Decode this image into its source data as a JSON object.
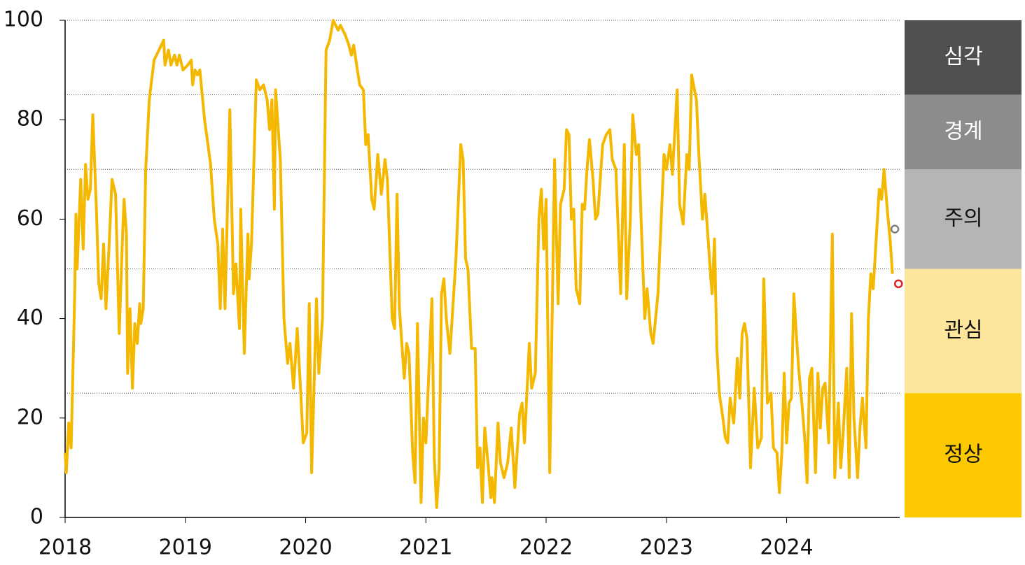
{
  "chart_data": {
    "type": "line",
    "x": [
      2018.0,
      2018.01,
      2018.03,
      2018.05,
      2018.08,
      2018.09,
      2018.1,
      2018.13,
      2018.15,
      2018.17,
      2018.19,
      2018.21,
      2018.23,
      2018.26,
      2018.28,
      2018.3,
      2018.32,
      2018.34,
      2018.37,
      2018.39,
      2018.42,
      2018.45,
      2018.48,
      2018.49,
      2018.51,
      2018.52,
      2018.54,
      2018.56,
      2018.58,
      2018.6,
      2018.62,
      2018.63,
      2018.65,
      2018.67,
      2018.7,
      2018.74,
      2018.78,
      2018.82,
      2018.83,
      2018.86,
      2018.88,
      2018.91,
      2018.93,
      2018.95,
      2018.98,
      2019.02,
      2019.05,
      2019.06,
      2019.08,
      2019.1,
      2019.12,
      2019.16,
      2019.21,
      2019.24,
      2019.27,
      2019.29,
      2019.31,
      2019.33,
      2019.37,
      2019.4,
      2019.42,
      2019.45,
      2019.46,
      2019.49,
      2019.52,
      2019.53,
      2019.55,
      2019.59,
      2019.62,
      2019.65,
      2019.68,
      2019.7,
      2019.72,
      2019.74,
      2019.75,
      2019.79,
      2019.82,
      2019.85,
      2019.87,
      2019.9,
      2019.93,
      2019.96,
      2019.98,
      2020.01,
      2020.03,
      2020.05,
      2020.09,
      2020.11,
      2020.14,
      2020.17,
      2020.2,
      2020.23,
      2020.27,
      2020.29,
      2020.33,
      2020.36,
      2020.38,
      2020.4,
      2020.43,
      2020.45,
      2020.48,
      2020.5,
      2020.52,
      2020.55,
      2020.57,
      2020.6,
      2020.63,
      2020.66,
      2020.68,
      2020.72,
      2020.74,
      2020.76,
      2020.78,
      2020.82,
      2020.84,
      2020.86,
      2020.89,
      2020.91,
      2020.93,
      2020.96,
      2020.98,
      2021.0,
      2021.05,
      2021.07,
      2021.09,
      2021.11,
      2021.13,
      2021.15,
      2021.17,
      2021.2,
      2021.25,
      2021.29,
      2021.31,
      2021.33,
      2021.35,
      2021.38,
      2021.41,
      2021.43,
      2021.45,
      2021.47,
      2021.49,
      2021.52,
      2021.54,
      2021.55,
      2021.57,
      2021.6,
      2021.62,
      2021.65,
      2021.68,
      2021.71,
      2021.74,
      2021.78,
      2021.8,
      2021.82,
      2021.86,
      2021.88,
      2021.91,
      2021.94,
      2021.96,
      2021.98,
      2022.0,
      2022.03,
      2022.07,
      2022.1,
      2022.12,
      2022.15,
      2022.17,
      2022.19,
      2022.21,
      2022.23,
      2022.25,
      2022.28,
      2022.3,
      2022.32,
      2022.34,
      2022.36,
      2022.39,
      2022.41,
      2022.43,
      2022.47,
      2022.5,
      2022.53,
      2022.55,
      2022.58,
      2022.62,
      2022.65,
      2022.67,
      2022.7,
      2022.72,
      2022.75,
      2022.77,
      2022.79,
      2022.82,
      2022.84,
      2022.87,
      2022.89,
      2022.93,
      2022.98,
      2023.0,
      2023.03,
      2023.05,
      2023.09,
      2023.11,
      2023.14,
      2023.17,
      2023.19,
      2023.21,
      2023.25,
      2023.27,
      2023.3,
      2023.32,
      2023.35,
      2023.37,
      2023.38,
      2023.4,
      2023.42,
      2023.44,
      2023.47,
      2023.49,
      2023.51,
      2023.53,
      2023.56,
      2023.59,
      2023.61,
      2023.63,
      2023.65,
      2023.67,
      2023.7,
      2023.73,
      2023.76,
      2023.79,
      2023.81,
      2023.84,
      2023.87,
      2023.89,
      2023.92,
      2023.94,
      2023.96,
      2023.98,
      2024.0,
      2024.02,
      2024.04,
      2024.06,
      2024.08,
      2024.1,
      2024.13,
      2024.15,
      2024.17,
      2024.19,
      2024.21,
      2024.24,
      2024.26,
      2024.28,
      2024.3,
      2024.32,
      2024.35,
      2024.38,
      2024.4,
      2024.43,
      2024.45,
      2024.47,
      2024.5,
      2024.52,
      2024.54,
      2024.56,
      2024.59,
      2024.61,
      2024.63,
      2024.66,
      2024.68,
      2024.7,
      2024.72,
      2024.74,
      2024.77,
      2024.79,
      2024.81,
      2024.84,
      2024.86,
      2024.88
    ],
    "series": [
      {
        "color": "#f5b800",
        "values": [
          13,
          9,
          19,
          14,
          45,
          61,
          50,
          68,
          54,
          71,
          64,
          66,
          81,
          62,
          47,
          44,
          55,
          42,
          57,
          68,
          65,
          37,
          58,
          64,
          57,
          29,
          42,
          26,
          39,
          35,
          43,
          39,
          42,
          70,
          84,
          92,
          94,
          96,
          91,
          94,
          91,
          93,
          91,
          93,
          90,
          91,
          92,
          87,
          90,
          89,
          90,
          80,
          71,
          60,
          55,
          42,
          58,
          42,
          82,
          45,
          51,
          38,
          62,
          33,
          57,
          48,
          55,
          88,
          86,
          87,
          84,
          78,
          84,
          62,
          86,
          72,
          40,
          31,
          35,
          26,
          38,
          25,
          15,
          17,
          43,
          9,
          44,
          29,
          40,
          94,
          96,
          100,
          98,
          99,
          97,
          95,
          93,
          95,
          90,
          87,
          86,
          75,
          77,
          64,
          62,
          73,
          65,
          72,
          68,
          40,
          38,
          65,
          42,
          28,
          35,
          33,
          13,
          7,
          39,
          3,
          20,
          15,
          44,
          12,
          2,
          10,
          45,
          48,
          40,
          33,
          52,
          75,
          72,
          52,
          50,
          34,
          34,
          10,
          14,
          3,
          18,
          10,
          4,
          8,
          3,
          19,
          11,
          8,
          11,
          18,
          6,
          21,
          23,
          15,
          35,
          26,
          29,
          60,
          66,
          54,
          64,
          9,
          72,
          43,
          63,
          66,
          78,
          77,
          60,
          62,
          46,
          43,
          63,
          62,
          70,
          76,
          68,
          60,
          61,
          75,
          77,
          78,
          72,
          70,
          45,
          75,
          44,
          60,
          81,
          73,
          75,
          60,
          40,
          46,
          37,
          35,
          45,
          73,
          70,
          75,
          69,
          86,
          63,
          59,
          73,
          70,
          89,
          84,
          73,
          60,
          65,
          55,
          48,
          45,
          56,
          34,
          25,
          20,
          16,
          15,
          24,
          19,
          32,
          24,
          37,
          39,
          36,
          10,
          26,
          14,
          16,
          48,
          23,
          25,
          14,
          13,
          5,
          13,
          29,
          15,
          23,
          24,
          45,
          37,
          30,
          22,
          16,
          7,
          28,
          30,
          9,
          29,
          18,
          26,
          27,
          15,
          57,
          8,
          23,
          10,
          17,
          30,
          8,
          41,
          20,
          8,
          18,
          24,
          14,
          40,
          49,
          46,
          54,
          66,
          64,
          70,
          61,
          56,
          49
        ]
      }
    ],
    "markers": [
      {
        "x": 2024.9,
        "value": 58,
        "color": "#808080"
      },
      {
        "x": 2024.93,
        "value": 47,
        "color": "#e02020"
      }
    ],
    "bands": [
      {
        "label": "심각",
        "from": 85,
        "to": 100,
        "color": "#505050",
        "text_color": "#ffffff"
      },
      {
        "label": "경계",
        "from": 70,
        "to": 85,
        "color": "#8c8c8c",
        "text_color": "#ffffff"
      },
      {
        "label": "주의",
        "from": 50,
        "to": 70,
        "color": "#b5b5b5",
        "text_color": "#111111"
      },
      {
        "label": "관심",
        "from": 25,
        "to": 50,
        "color": "#fde69b",
        "text_color": "#111111"
      },
      {
        "label": "정상",
        "from": 0,
        "to": 25,
        "color": "#fcc800",
        "text_color": "#111111"
      }
    ],
    "xlim": [
      2018,
      2024.94
    ],
    "xticks": [
      2018,
      2019,
      2020,
      2021,
      2022,
      2023,
      2024
    ],
    "ylim": [
      0,
      100
    ],
    "yticks": [
      0,
      20,
      40,
      60,
      80,
      100
    ]
  }
}
